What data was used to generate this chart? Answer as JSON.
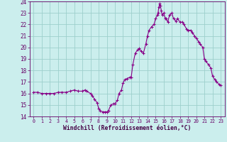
{
  "xlabel": "Windchill (Refroidissement éolien,°C)",
  "background_color": "#cbeeed",
  "grid_color": "#9dcfcc",
  "line_color": "#880088",
  "marker_color": "#880088",
  "xlim": [
    -0.5,
    23.5
  ],
  "ylim": [
    14,
    24
  ],
  "yticks": [
    14,
    15,
    16,
    17,
    18,
    19,
    20,
    21,
    22,
    23,
    24
  ],
  "xticks": [
    0,
    1,
    2,
    3,
    4,
    5,
    6,
    7,
    8,
    9,
    10,
    11,
    12,
    13,
    14,
    15,
    16,
    17,
    18,
    19,
    20,
    21,
    22,
    23
  ],
  "x": [
    0,
    0.5,
    1,
    1.5,
    2,
    2.5,
    3,
    3.5,
    4,
    4.5,
    5,
    5.5,
    6,
    6.3,
    6.5,
    7,
    7.2,
    7.5,
    7.8,
    8,
    8.2,
    8.5,
    8.8,
    9,
    9.2,
    9.5,
    9.8,
    10,
    10.3,
    10.5,
    10.8,
    11,
    11.2,
    11.5,
    11.8,
    12,
    12.2,
    12.5,
    12.8,
    13,
    13.2,
    13.5,
    13.8,
    14,
    14.2,
    14.5,
    14.8,
    15,
    15.2,
    15.3,
    15.4,
    15.5,
    15.6,
    15.7,
    15.8,
    16,
    16.2,
    16.3,
    16.5,
    16.7,
    17,
    17.2,
    17.5,
    17.7,
    18,
    18.3,
    18.5,
    18.8,
    19,
    19.3,
    19.5,
    19.8,
    20,
    20.3,
    20.5,
    20.8,
    21,
    21.2,
    21.5,
    21.8,
    22,
    22.3,
    22.5,
    22.8,
    23
  ],
  "y": [
    16.1,
    16.1,
    16.0,
    16.0,
    16.0,
    16.0,
    16.1,
    16.1,
    16.1,
    16.2,
    16.3,
    16.2,
    16.2,
    16.3,
    16.2,
    16.0,
    15.8,
    15.5,
    15.2,
    14.7,
    14.5,
    14.4,
    14.4,
    14.4,
    14.5,
    15.0,
    15.1,
    15.1,
    15.4,
    16.0,
    16.3,
    16.9,
    17.2,
    17.3,
    17.4,
    17.4,
    18.5,
    19.5,
    19.8,
    19.9,
    19.7,
    19.5,
    20.3,
    21.0,
    21.5,
    21.8,
    22.0,
    22.5,
    22.8,
    23.0,
    23.5,
    23.8,
    23.6,
    23.2,
    22.8,
    23.0,
    22.5,
    22.5,
    22.2,
    22.8,
    23.0,
    22.5,
    22.3,
    22.5,
    22.2,
    22.2,
    22.0,
    21.6,
    21.5,
    21.5,
    21.3,
    21.0,
    20.8,
    20.5,
    20.3,
    20.0,
    19.0,
    18.8,
    18.5,
    18.2,
    17.5,
    17.2,
    17.0,
    16.8,
    16.7
  ]
}
